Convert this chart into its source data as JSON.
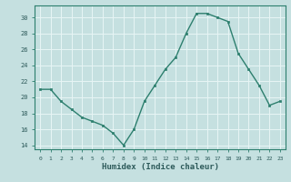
{
  "x": [
    0,
    1,
    2,
    3,
    4,
    5,
    6,
    7,
    8,
    9,
    10,
    11,
    12,
    13,
    14,
    15,
    16,
    17,
    18,
    19,
    20,
    21,
    22,
    23
  ],
  "y": [
    21.0,
    21.0,
    19.5,
    18.5,
    17.5,
    17.0,
    16.5,
    15.5,
    14.0,
    16.0,
    19.5,
    21.5,
    23.5,
    25.0,
    28.0,
    30.5,
    30.5,
    30.0,
    29.5,
    25.5,
    23.5,
    21.5,
    19.0,
    19.5
  ],
  "ylim": [
    13.5,
    31.5
  ],
  "yticks": [
    14,
    16,
    18,
    20,
    22,
    24,
    26,
    28,
    30
  ],
  "xticks": [
    0,
    1,
    2,
    3,
    4,
    5,
    6,
    7,
    8,
    9,
    10,
    11,
    12,
    13,
    14,
    15,
    16,
    17,
    18,
    19,
    20,
    21,
    22,
    23
  ],
  "xlabel": "Humidex (Indice chaleur)",
  "line_color": "#2d7f6e",
  "marker_color": "#2d7f6e",
  "bg_color": "#c5e0e0",
  "grid_color": "#e8f5f5",
  "tick_label_color": "#2d5a5a",
  "xlabel_color": "#2d5a5a"
}
